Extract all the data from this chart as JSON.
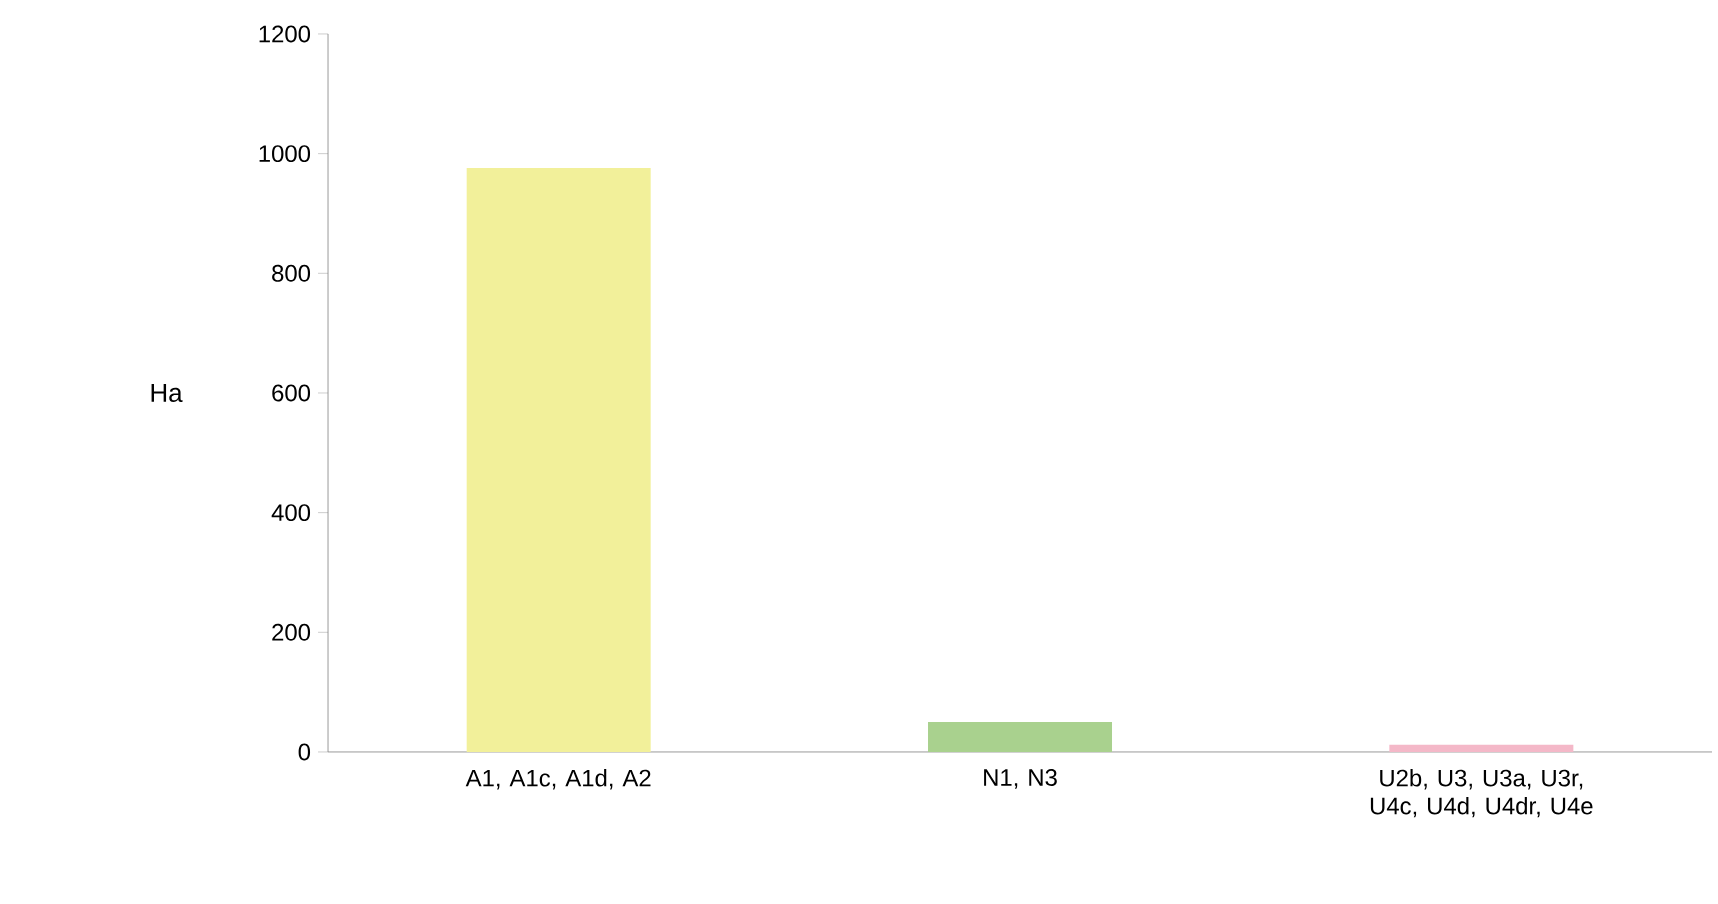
{
  "chart_data": {
    "type": "bar",
    "ylabel": "Ha",
    "categories": [
      "A1, A1c, A1d, A2",
      "N1, N3",
      "U2b, U3, U3a, U3r, U4c, U4d, U4dr, U4e"
    ],
    "values": [
      976,
      50,
      12
    ],
    "colors": [
      "#f2f09a",
      "#a9d18e",
      "#f4b8c8"
    ],
    "ylim": [
      0,
      1200
    ],
    "yticks": [
      0,
      200,
      400,
      600,
      800,
      1000,
      1200
    ],
    "grid": false
  }
}
